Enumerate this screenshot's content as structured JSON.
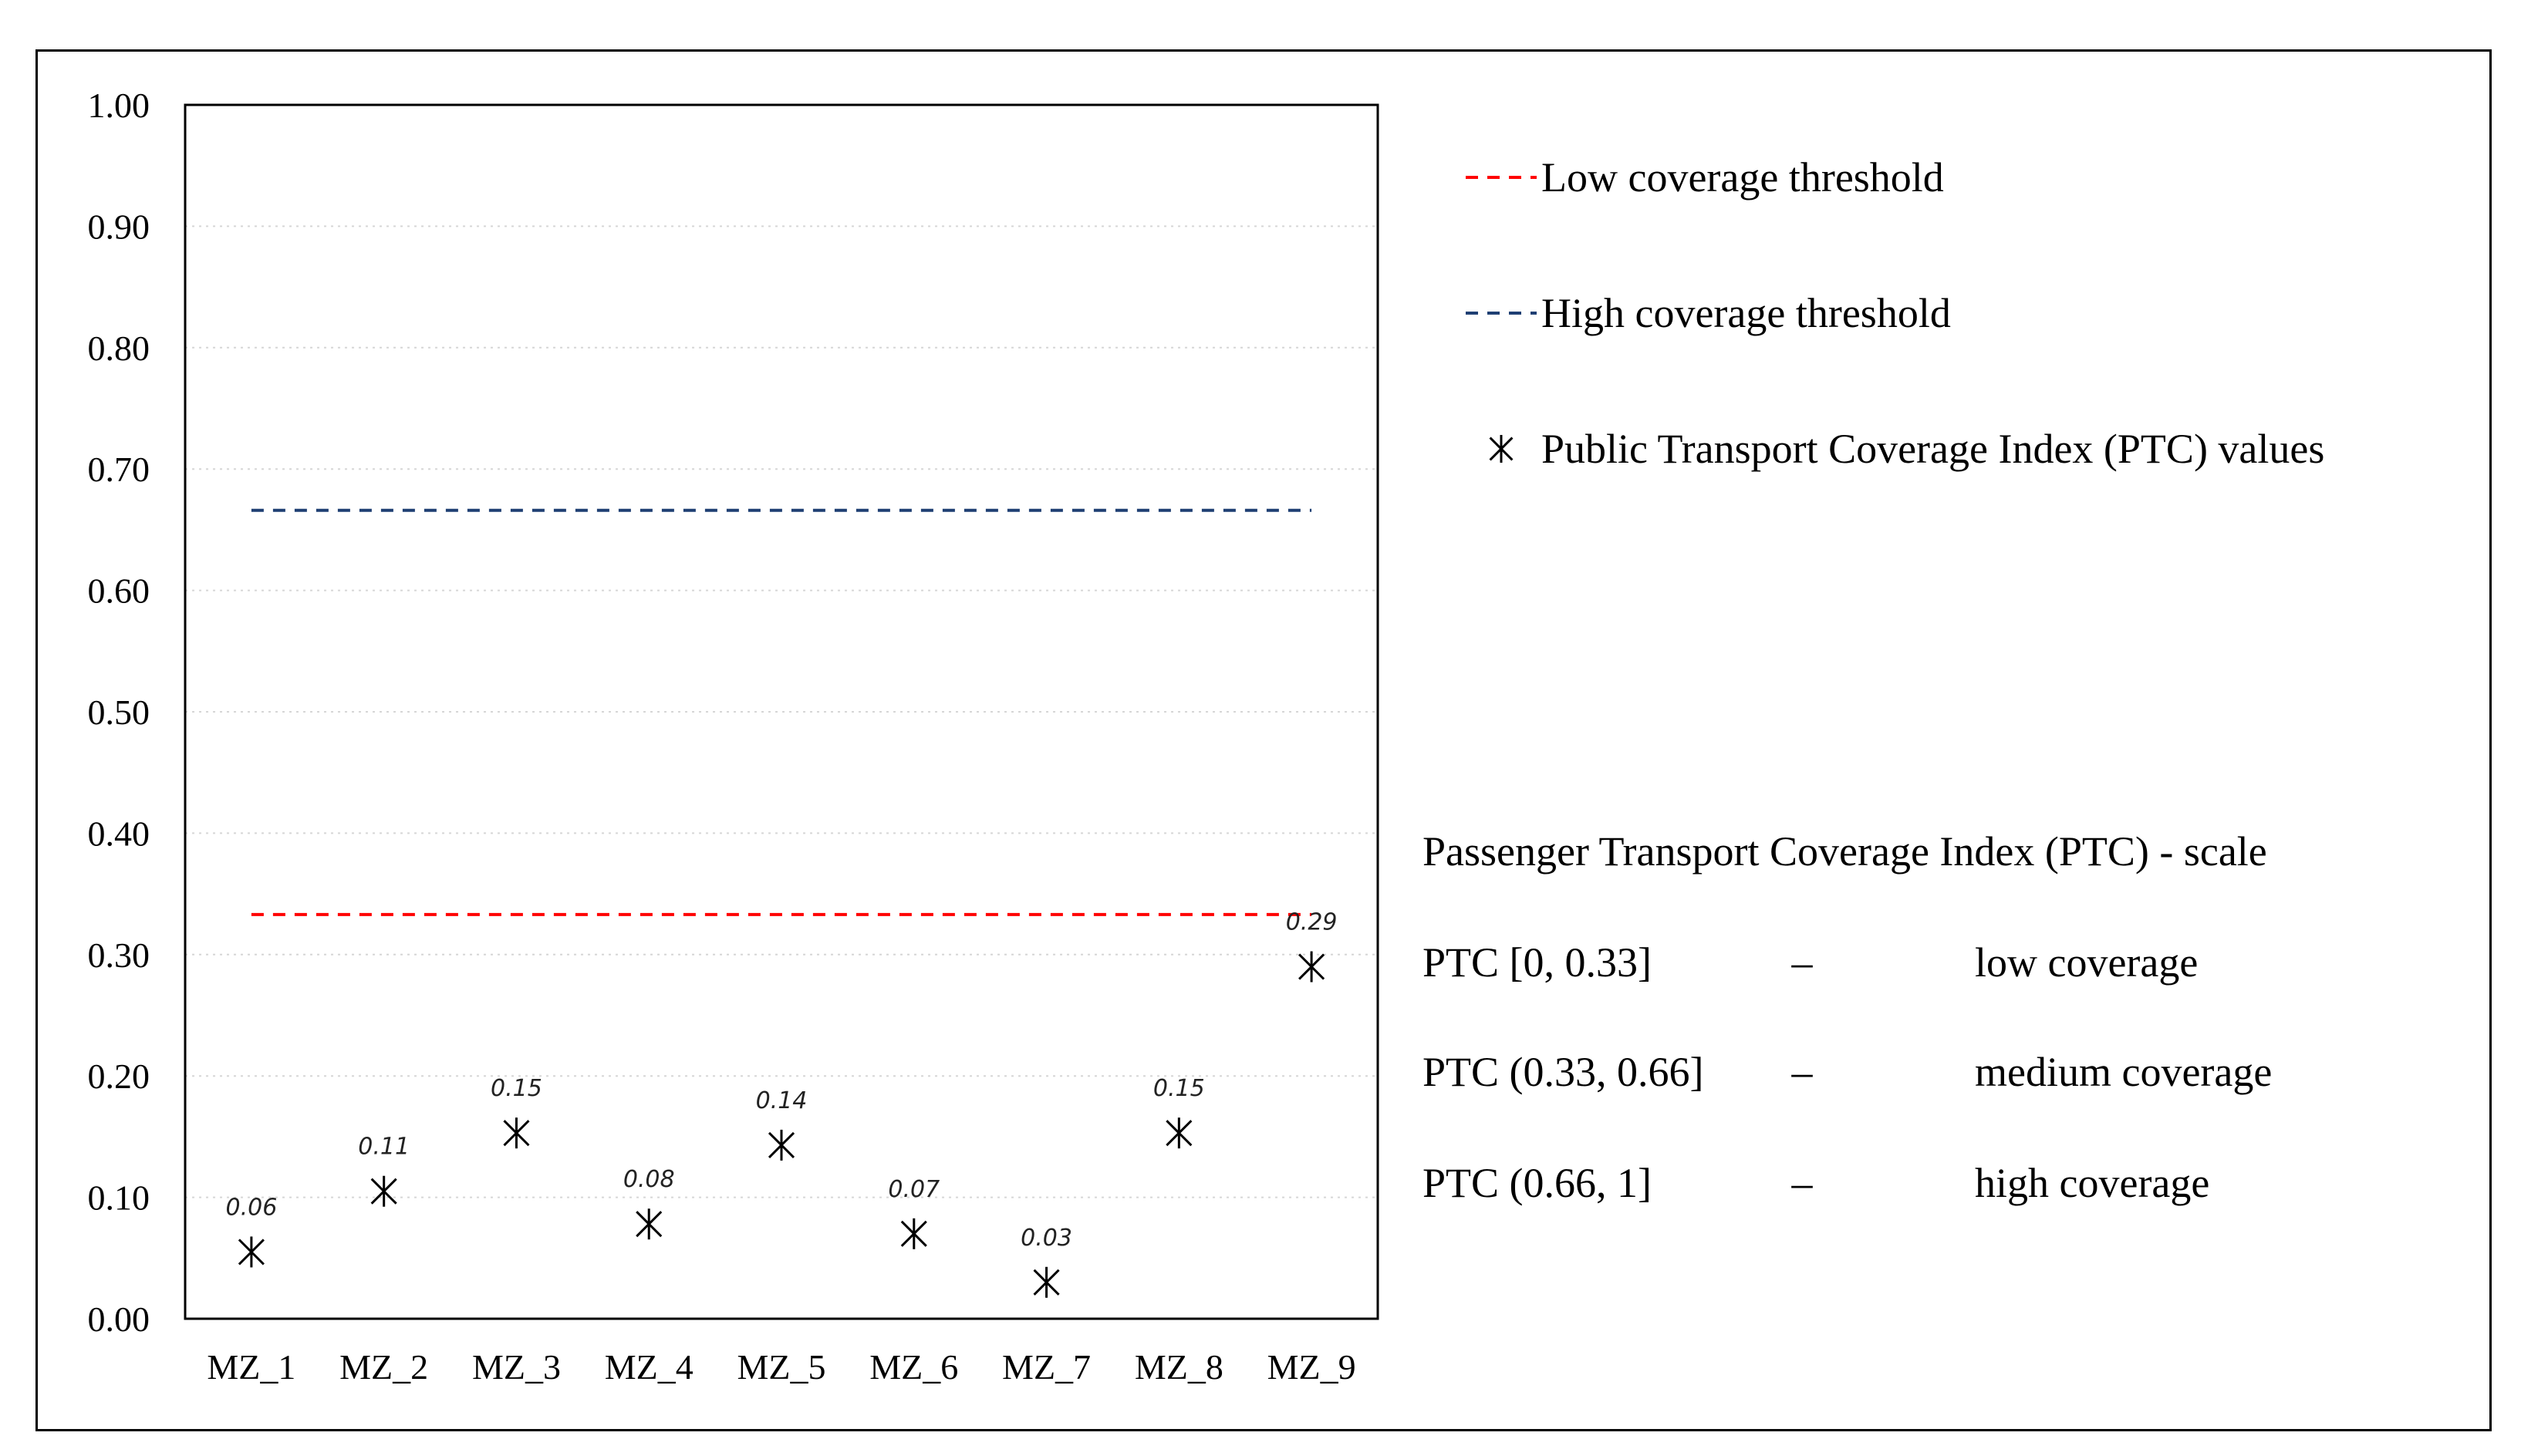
{
  "chart_data": {
    "type": "scatter",
    "categories": [
      "MZ_1",
      "MZ_2",
      "MZ_3",
      "MZ_4",
      "MZ_5",
      "MZ_6",
      "MZ_7",
      "MZ_8",
      "MZ_9"
    ],
    "series": [
      {
        "name": "Public Transport Coverage Index (PTC) values",
        "values": [
          0.055,
          0.105,
          0.153,
          0.078,
          0.143,
          0.07,
          0.03,
          0.153,
          0.29
        ],
        "labels": [
          "0.06",
          "0.11",
          "0.15",
          "0.08",
          "0.14",
          "0.07",
          "0.03",
          "0.15",
          "0.29"
        ],
        "marker": "asterisk",
        "color": "#000000"
      }
    ],
    "thresholds": [
      {
        "name": "Low coverage threshold",
        "value": 0.333,
        "color": "#ff0000",
        "style": "dashed"
      },
      {
        "name": "High coverage threshold",
        "value": 0.666,
        "color": "#1f3f73",
        "style": "dashed"
      }
    ],
    "ylim": [
      0,
      1
    ],
    "yticks": [
      "0.00",
      "0.10",
      "0.20",
      "0.30",
      "0.40",
      "0.50",
      "0.60",
      "0.70",
      "0.80",
      "0.90",
      "1.00"
    ],
    "grid": "horizontal dotted",
    "legend_placement": "right",
    "scale": {
      "title": "Passenger Transport Coverage Index (PTC) - scale",
      "rows": [
        {
          "range": "PTC [0, 0.33]",
          "dash": "–",
          "meaning": "low coverage"
        },
        {
          "range": "PTC (0.33, 0.66]",
          "dash": "–",
          "meaning": "medium coverage"
        },
        {
          "range": "PTC (0.66, 1]",
          "dash": "–",
          "meaning": "high coverage"
        }
      ]
    }
  }
}
